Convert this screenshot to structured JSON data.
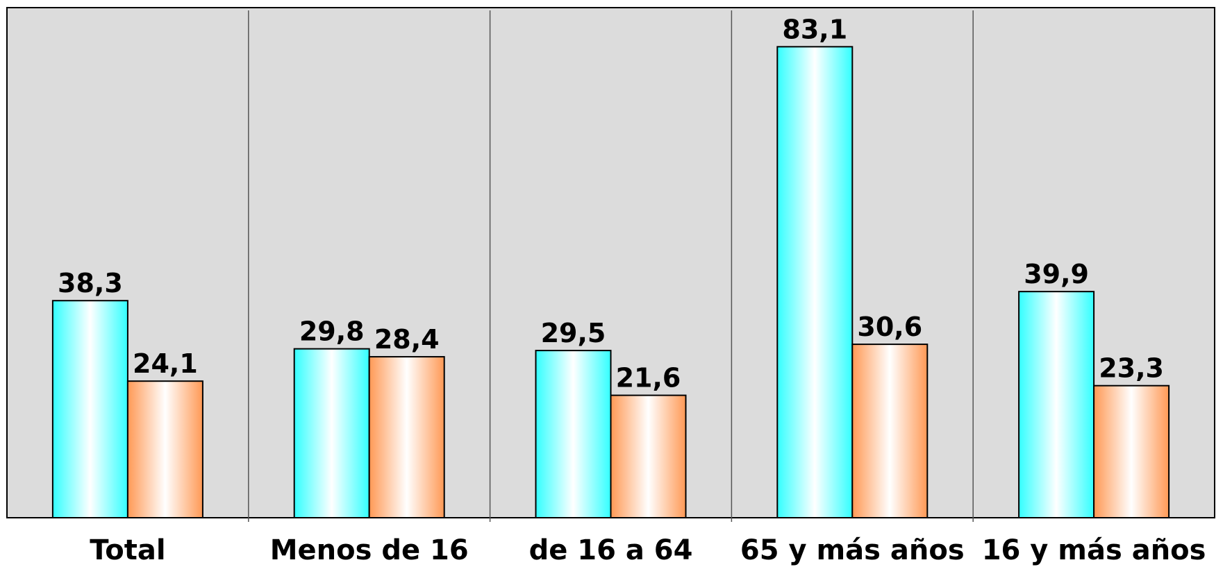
{
  "chart_data": {
    "type": "bar",
    "title": "",
    "xlabel": "",
    "ylabel": "",
    "categories": [
      "Total",
      "Menos de 16",
      "de 16 a 64",
      "65 y más años",
      "16 y más años"
    ],
    "series": [
      {
        "values": [
          38.3,
          29.8,
          29.5,
          83.1,
          39.9
        ],
        "labels": [
          "38,3",
          "29,8",
          "29,5",
          "83,1",
          "39,9"
        ],
        "color": "#33ffff"
      },
      {
        "values": [
          24.1,
          28.4,
          21.6,
          30.6,
          23.3
        ],
        "labels": [
          "24,1",
          "28,4",
          "21,6",
          "30,6",
          "23,3"
        ],
        "color": "#ff9955"
      }
    ],
    "ylim": [
      0,
      90
    ],
    "grid": false,
    "legend": "none",
    "plot_background": "#dcdcdc"
  }
}
